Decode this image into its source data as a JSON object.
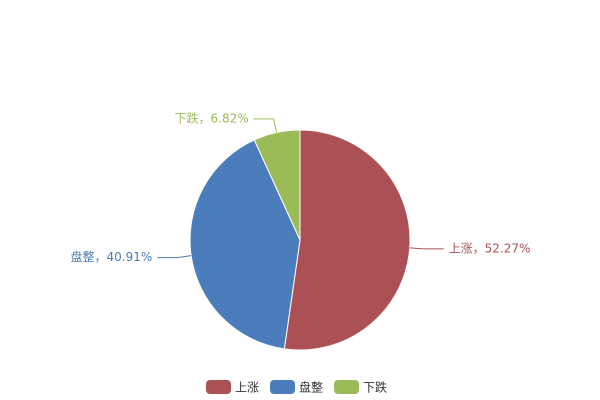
{
  "chart_data": {
    "type": "pie",
    "categories": [
      "上涨",
      "盘整",
      "下跌"
    ],
    "values": [
      52.27,
      40.91,
      6.82
    ],
    "value_labels": [
      "上涨，52.27%",
      "盘整，40.91%",
      "下跌，6.82%"
    ],
    "colors": [
      "#ab5156",
      "#4b7cbb",
      "#9bbb59"
    ],
    "legend": "bottom"
  }
}
